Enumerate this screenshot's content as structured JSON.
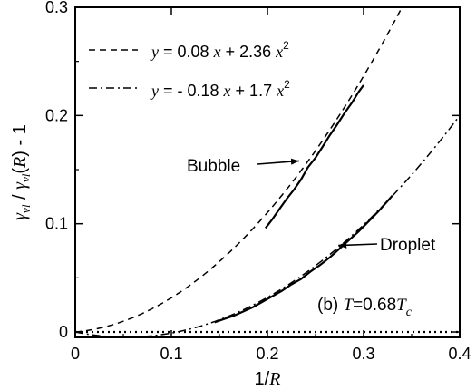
{
  "chart_data": {
    "type": "line",
    "xlabel": {
      "prefix": "1/",
      "var": "R"
    },
    "ylabel": {
      "gamma": "γ",
      "sub": "vl",
      "slash": " / ",
      "gamma2": "γ",
      "sub2": "vl",
      "arg_open": "(",
      "arg_var": "R",
      "arg_close": ")",
      "tail": " - 1"
    },
    "xlim": [
      0,
      0.4
    ],
    "ylim": [
      -0.005,
      0.3
    ],
    "x_ticks": [
      0,
      0.1,
      0.2,
      0.3,
      0.4
    ],
    "y_ticks": [
      0,
      0.1,
      0.2,
      0.3
    ],
    "x_tick_labels": [
      "0",
      "0.1",
      "0.2",
      "0.3",
      "0.4"
    ],
    "y_tick_labels": [
      "0",
      "0.1",
      "0.2",
      "0.3"
    ],
    "legend": {
      "placement": "top-left",
      "entries": [
        {
          "style": "dashed",
          "y": "y",
          "eq": " = 0.08 ",
          "x": "x",
          "plus": " + 2.36 ",
          "x2": "x",
          "exp": "2"
        },
        {
          "style": "dashdot",
          "y": "y",
          "eq": " = - 0.18 ",
          "x": "x",
          "plus": " + 1.7 ",
          "x2": "x",
          "exp": "2"
        }
      ]
    },
    "fits": [
      {
        "style": "dashed",
        "a": 0.08,
        "b": 2.36,
        "x_range": [
          0,
          0.4
        ]
      },
      {
        "style": "dashdot",
        "a": -0.18,
        "b": 1.7,
        "x_range": [
          0,
          0.4
        ]
      }
    ],
    "series": [
      {
        "label": "Bubble",
        "style": "solid",
        "x": [
          0.198,
          0.205,
          0.212,
          0.22,
          0.228,
          0.235,
          0.242,
          0.25,
          0.258,
          0.265,
          0.272,
          0.28,
          0.288,
          0.295,
          0.3
        ],
        "y": [
          0.096,
          0.104,
          0.113,
          0.123,
          0.132,
          0.141,
          0.152,
          0.161,
          0.172,
          0.182,
          0.191,
          0.202,
          0.212,
          0.222,
          0.228
        ]
      },
      {
        "label": "Droplet",
        "style": "solid",
        "x": [
          0.145,
          0.155,
          0.165,
          0.175,
          0.185,
          0.195,
          0.205,
          0.215,
          0.225,
          0.235,
          0.245,
          0.255,
          0.265,
          0.275,
          0.285,
          0.295,
          0.305,
          0.315,
          0.325,
          0.33
        ],
        "y": [
          0.009,
          0.012,
          0.015,
          0.019,
          0.023,
          0.028,
          0.033,
          0.038,
          0.044,
          0.049,
          0.056,
          0.062,
          0.069,
          0.077,
          0.085,
          0.093,
          0.102,
          0.111,
          0.121,
          0.126
        ]
      }
    ],
    "zero_line": {
      "style": "dotted",
      "y": 0
    },
    "annotations": [
      {
        "text": "Bubble",
        "arrow_to": [
          0.233,
          0.158
        ]
      },
      {
        "text": "Droplet",
        "arrow_to": [
          0.27,
          0.08
        ]
      }
    ],
    "panel": {
      "prefix": "(b) ",
      "T": "T",
      "eq": "=0.68",
      "T2": "T",
      "sub": "c"
    },
    "grid": false
  }
}
